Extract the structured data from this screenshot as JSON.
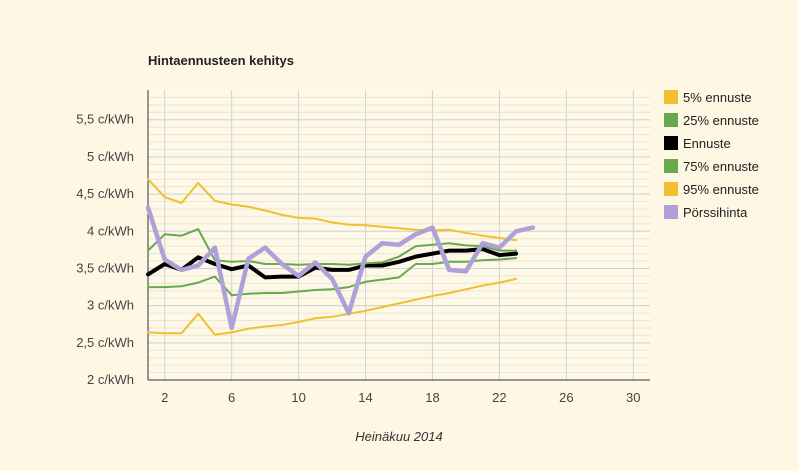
{
  "chart_data": {
    "type": "line",
    "title": "Hintaennusteen kehitys",
    "xlabel": "Heinäkuu 2014",
    "ylabel": "",
    "xlim": [
      1,
      31
    ],
    "ylim": [
      2,
      5.9
    ],
    "x_ticks": [
      2,
      6,
      10,
      14,
      18,
      22,
      26,
      30
    ],
    "y_ticks": [
      2,
      2.5,
      3,
      3.5,
      4,
      4.5,
      5,
      5.5
    ],
    "y_tick_labels": [
      "2 c/kWh",
      "2,5 c/kWh",
      "3 c/kWh",
      "3,5 c/kWh",
      "4 c/kWh",
      "4,5 c/kWh",
      "5 c/kWh",
      "5,5 c/kWh"
    ],
    "grid": true,
    "legend_position": "right",
    "series": [
      {
        "name": "5% ennuste",
        "color": "#f0c030",
        "width": 2,
        "x": [
          1,
          2,
          3,
          4,
          5,
          6,
          7,
          8,
          9,
          10,
          11,
          12,
          13,
          14,
          15,
          16,
          17,
          18,
          19,
          20,
          21,
          22,
          23
        ],
        "values": [
          2.64,
          2.63,
          2.63,
          2.89,
          2.61,
          2.64,
          2.69,
          2.72,
          2.74,
          2.78,
          2.83,
          2.85,
          2.89,
          2.93,
          2.98,
          3.03,
          3.08,
          3.13,
          3.17,
          3.22,
          3.27,
          3.31,
          3.36
        ]
      },
      {
        "name": "25% ennuste",
        "color": "#6aa84f",
        "width": 2,
        "x": [
          1,
          2,
          3,
          4,
          5,
          6,
          7,
          8,
          9,
          10,
          11,
          12,
          13,
          14,
          15,
          16,
          17,
          18,
          19,
          20,
          21,
          22,
          23
        ],
        "values": [
          3.25,
          3.25,
          3.26,
          3.31,
          3.39,
          3.14,
          3.16,
          3.17,
          3.17,
          3.19,
          3.21,
          3.22,
          3.25,
          3.32,
          3.35,
          3.38,
          3.56,
          3.56,
          3.59,
          3.59,
          3.61,
          3.62,
          3.64
        ]
      },
      {
        "name": "Ennuste",
        "color": "#000000",
        "width": 4,
        "x": [
          1,
          2,
          3,
          4,
          5,
          6,
          7,
          8,
          9,
          10,
          11,
          12,
          13,
          14,
          15,
          16,
          17,
          18,
          19,
          20,
          21,
          22,
          23
        ],
        "values": [
          3.42,
          3.56,
          3.48,
          3.65,
          3.56,
          3.49,
          3.54,
          3.38,
          3.39,
          3.39,
          3.51,
          3.48,
          3.48,
          3.54,
          3.54,
          3.59,
          3.66,
          3.7,
          3.74,
          3.74,
          3.76,
          3.68,
          3.7
        ]
      },
      {
        "name": "75% ennuste",
        "color": "#6aa84f",
        "width": 2,
        "x": [
          1,
          2,
          3,
          4,
          5,
          6,
          7,
          8,
          9,
          10,
          11,
          12,
          13,
          14,
          15,
          16,
          17,
          18,
          19,
          20,
          21,
          22,
          23
        ],
        "values": [
          3.74,
          3.96,
          3.94,
          4.03,
          3.61,
          3.59,
          3.6,
          3.56,
          3.56,
          3.55,
          3.56,
          3.56,
          3.55,
          3.57,
          3.58,
          3.66,
          3.8,
          3.82,
          3.84,
          3.81,
          3.8,
          3.74,
          3.74
        ]
      },
      {
        "name": "95% ennuste",
        "color": "#f0c030",
        "width": 2,
        "x": [
          1,
          2,
          3,
          4,
          5,
          6,
          7,
          8,
          9,
          10,
          11,
          12,
          13,
          14,
          15,
          16,
          17,
          18,
          19,
          20,
          21,
          22,
          23
        ],
        "values": [
          4.7,
          4.46,
          4.38,
          4.65,
          4.41,
          4.36,
          4.33,
          4.28,
          4.22,
          4.18,
          4.17,
          4.12,
          4.09,
          4.08,
          4.06,
          4.04,
          4.02,
          4.01,
          4.02,
          3.98,
          3.94,
          3.91,
          3.88
        ]
      },
      {
        "name": "Pörssihinta",
        "color": "#b0a0d8",
        "width": 4.5,
        "x": [
          1,
          2,
          3,
          4,
          5,
          6,
          7,
          8,
          9,
          10,
          11,
          12,
          13,
          14,
          15,
          16,
          17,
          18,
          19,
          20,
          21,
          22,
          23,
          24
        ],
        "values": [
          4.32,
          3.62,
          3.48,
          3.54,
          3.78,
          2.7,
          3.63,
          3.78,
          3.56,
          3.4,
          3.58,
          3.36,
          2.9,
          3.66,
          3.84,
          3.82,
          3.96,
          4.05,
          3.48,
          3.46,
          3.84,
          3.78,
          4.0,
          4.05
        ]
      }
    ]
  }
}
